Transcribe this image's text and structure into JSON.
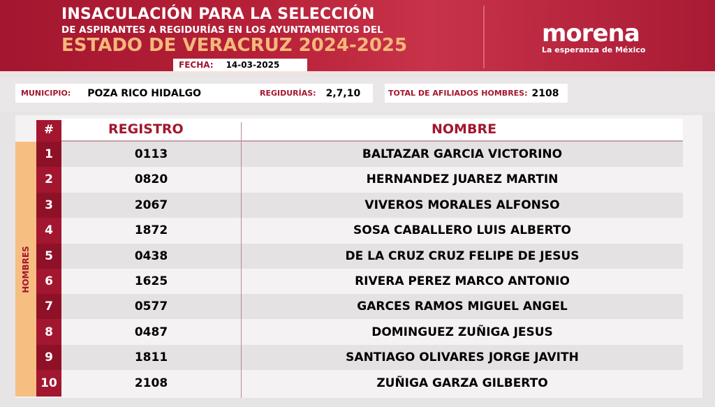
{
  "header": {
    "title_line1": "INSACULACIÓN PARA LA SELECCIÓN",
    "title_line2": "DE ASPIRANTES A REGIDURÍAS EN LOS AYUNTAMIENTOS DEL",
    "title_line3": "ESTADO DE VERACRUZ 2024-2025",
    "fecha_label": "FECHA:",
    "fecha": "14-03-2025"
  },
  "logo": {
    "name": "morena",
    "tagline": "La esperanza de México"
  },
  "info": {
    "municipio_label": "MUNICIPIO:",
    "municipio": "POZA RICO HIDALGO",
    "regidurias_label": "REGIDURÍAS:",
    "regidurias": "2,7,10",
    "total_label": "TOTAL DE AFILIADOS HOMBRES:",
    "total": "2108"
  },
  "table": {
    "col_num": "#",
    "col_registro": "REGISTRO",
    "col_nombre": "NOMBRE",
    "group": "HOMBRES",
    "rows": [
      {
        "n": "1",
        "registro": "0113",
        "nombre": "BALTAZAR GARCIA VICTORINO"
      },
      {
        "n": "2",
        "registro": "0820",
        "nombre": "HERNANDEZ JUAREZ MARTIN"
      },
      {
        "n": "3",
        "registro": "2067",
        "nombre": "VIVEROS MORALES ALFONSO"
      },
      {
        "n": "4",
        "registro": "1872",
        "nombre": "SOSA CABALLERO LUIS ALBERTO"
      },
      {
        "n": "5",
        "registro": "0438",
        "nombre": "DE LA CRUZ CRUZ FELIPE DE JESUS"
      },
      {
        "n": "6",
        "registro": "1625",
        "nombre": "RIVERA PEREZ MARCO ANTONIO"
      },
      {
        "n": "7",
        "registro": "0577",
        "nombre": "GARCES RAMOS MIGUEL ANGEL"
      },
      {
        "n": "8",
        "registro": "0487",
        "nombre": "DOMINGUEZ ZUÑIGA JESUS"
      },
      {
        "n": "9",
        "registro": "1811",
        "nombre": "SANTIAGO OLIVARES JORGE JAVITH"
      },
      {
        "n": "10",
        "registro": "2108",
        "nombre": "ZUÑIGA GARZA GILBERTO"
      }
    ]
  },
  "colors": {
    "brand_red": "#a3162f",
    "accent_orange": "#f7be82",
    "title_gold": "#f6b77b"
  }
}
